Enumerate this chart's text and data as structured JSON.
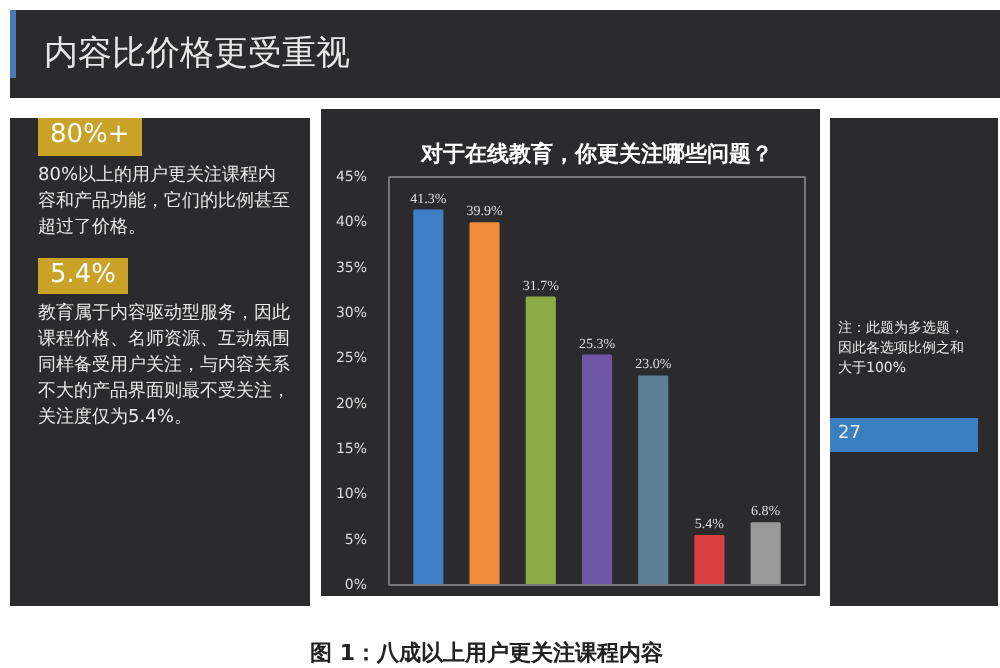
{
  "chart_data": {
    "type": "bar",
    "title": "对于在线教育，你更关注哪些问题？",
    "categories": [
      null,
      null,
      null,
      null,
      null,
      null,
      null
    ],
    "values": [
      41.3,
      39.9,
      31.7,
      25.3,
      23.0,
      5.4,
      6.8
    ],
    "colors": [
      "#3f7fc6",
      "#f08c3a",
      "#8aab45",
      "#7057a6",
      "#5e8096",
      "#d94040",
      "#9a9a9a"
    ],
    "value_labels": [
      "41.3%",
      "39.9%",
      "31.7%",
      "25.3%",
      "23.0%",
      "5.4%",
      "6.8%"
    ],
    "ylim": [
      0,
      45
    ],
    "yticks": [
      {
        "value": 0,
        "label": "0%"
      },
      {
        "value": 5,
        "label": "5%"
      },
      {
        "value": 10,
        "label": "10%"
      },
      {
        "value": 15,
        "label": "15%"
      },
      {
        "value": 20,
        "label": "20%"
      },
      {
        "value": 25,
        "label": "25%"
      },
      {
        "value": 30,
        "label": "30%"
      },
      {
        "value": 35,
        "label": "35%"
      },
      {
        "value": 40,
        "label": "40%"
      },
      {
        "value": 45,
        "label": "45%"
      }
    ],
    "tick_labels": "y",
    "annotations": [
      "内容比价格更受重视",
      "80%+",
      "80%以上的用户更关注课程内容和产品功能，它们的比例甚至超过了价格。",
      "5.4%",
      "教育属于内容驱动型服务，因此课程价格、名师资源、互动氛围同样备受用户关注，与内容关系不大的产品界面则最不受关注，关注度仅为5.4%。",
      "注：此题为多选题，因此各选项比例之和大于100%",
      "图 1：八成以上用户更关注课程内容",
      "27"
    ]
  }
}
